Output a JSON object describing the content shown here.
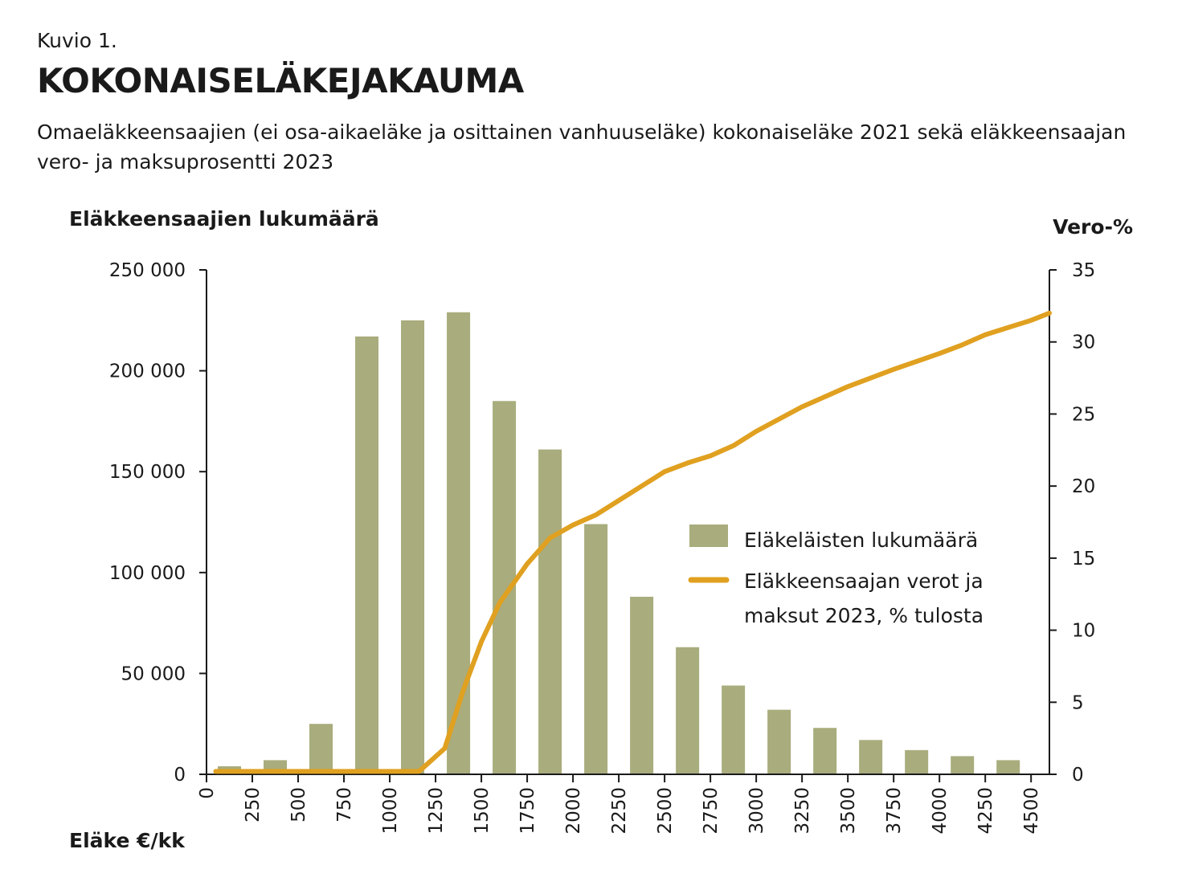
{
  "header": {
    "kicker": "Kuvio 1.",
    "title": "KOKONAISELÄKEJAKAUMA",
    "subtitle": "Omaeläkkeensaajien (ei osa-aikaeläke ja osittainen vanhuuseläke) kokonaiseläke 2021 sekä eläkkeensaajan vero- ja maksuprosentti 2023"
  },
  "colors": {
    "bar": "#a9ac7c",
    "line": "#e0a020",
    "axis": "#1a1a1a"
  },
  "chart_data": {
    "type": "bar",
    "ylabel": "Eläkkeensaajien lukumäärä",
    "y2label": "Vero-%",
    "xlabel": "Eläke €/kk",
    "categories": [
      "250",
      "500",
      "750",
      "1000",
      "1250",
      "1500",
      "1750",
      "2000",
      "2250",
      "2500",
      "2750",
      "3000",
      "3250",
      "3500",
      "3750",
      "4000",
      "4250",
      "4500"
    ],
    "xticks": [
      "0",
      "250",
      "500",
      "750",
      "1000",
      "1250",
      "1500",
      "1750",
      "2000",
      "2250",
      "2500",
      "2750",
      "3000",
      "3250",
      "3500",
      "3750",
      "4000",
      "4250",
      "4500"
    ],
    "xlim": [
      0,
      4600
    ],
    "ylim": [
      0,
      250000
    ],
    "yticks": [
      "0",
      "50 000",
      "100 000",
      "150 000",
      "200 000",
      "250 000"
    ],
    "y2lim": [
      0,
      35
    ],
    "y2ticks": [
      "0",
      "5",
      "10",
      "15",
      "20",
      "25",
      "30",
      "35"
    ],
    "series": [
      {
        "name": "Eläkeläisten lukumäärä",
        "kind": "bar",
        "x": [
          125,
          375,
          625,
          875,
          1125,
          1375,
          1625,
          1875,
          2125,
          2375,
          2625,
          2875,
          3125,
          3375,
          3625,
          3875,
          4125,
          4375
        ],
        "values": [
          4000,
          7000,
          25000,
          217000,
          225000,
          229000,
          185000,
          161000,
          124000,
          88000,
          63000,
          44000,
          32000,
          23000,
          17000,
          12000,
          9000,
          7000
        ]
      },
      {
        "name": "Eläkkeensaajan verot ja maksut 2023, % tulosta",
        "name_lines": [
          "Eläkkeensaajan verot ja",
          "maksut 2023, % tulosta"
        ],
        "kind": "line",
        "axis": "right",
        "x": [
          50,
          300,
          550,
          800,
          1050,
          1160,
          1300,
          1400,
          1500,
          1600,
          1750,
          1875,
          2000,
          2125,
          2250,
          2375,
          2500,
          2625,
          2750,
          2875,
          3000,
          3250,
          3500,
          3750,
          4000,
          4125,
          4250,
          4375,
          4500,
          4600
        ],
        "values": [
          0.2,
          0.2,
          0.2,
          0.2,
          0.2,
          0.2,
          1.8,
          5.8,
          9.2,
          11.9,
          14.6,
          16.4,
          17.3,
          18.0,
          19.0,
          20.0,
          21.0,
          21.6,
          22.1,
          22.8,
          23.8,
          25.5,
          26.9,
          28.1,
          29.2,
          29.8,
          30.5,
          31.0,
          31.5,
          32.0
        ]
      }
    ],
    "legend_position": "center-right",
    "grid": false
  }
}
